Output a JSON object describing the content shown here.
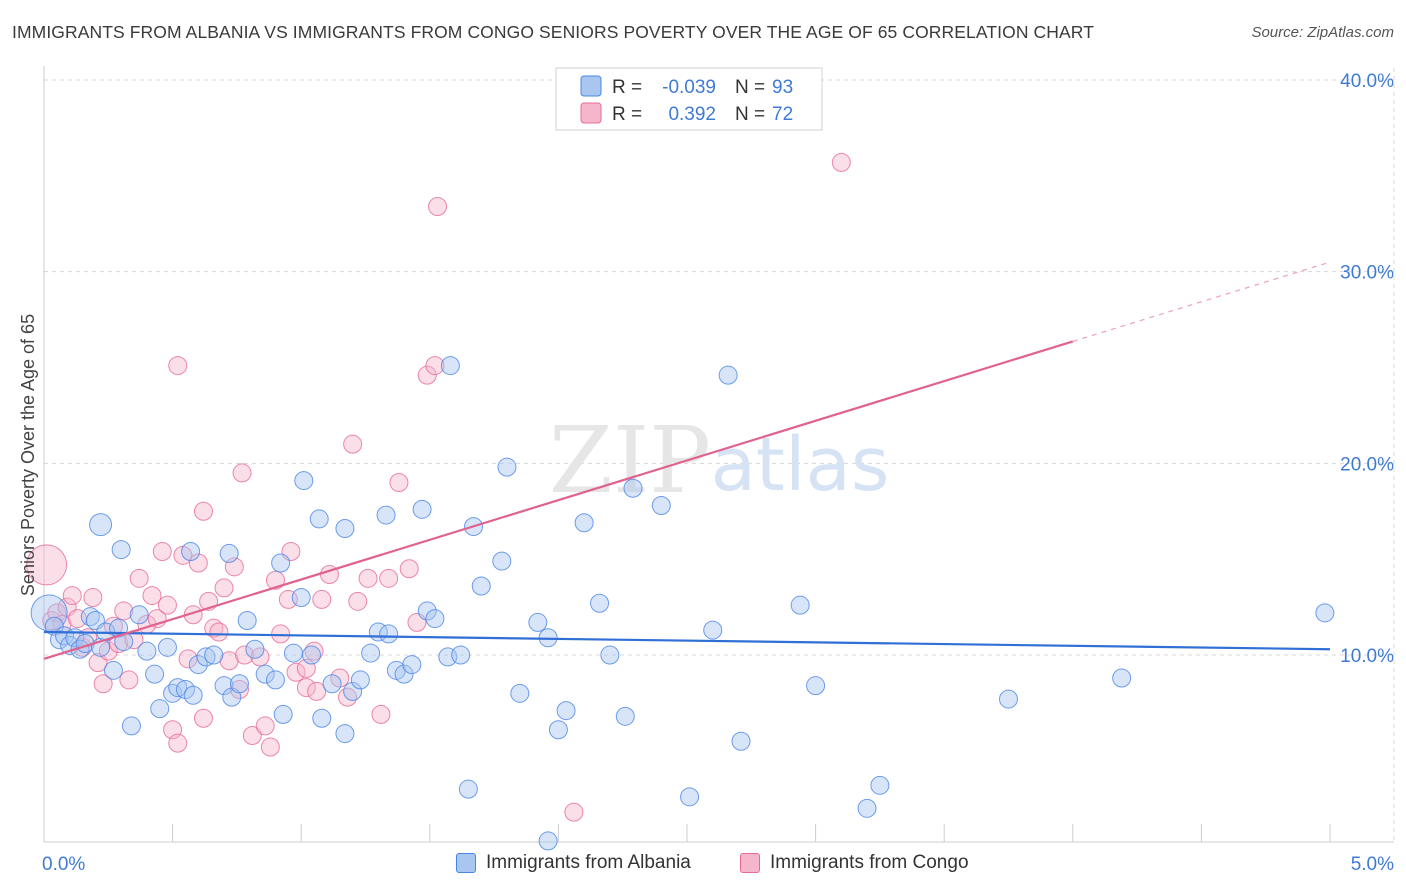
{
  "header": {
    "title": "IMMIGRANTS FROM ALBANIA VS IMMIGRANTS FROM CONGO SENIORS POVERTY OVER THE AGE OF 65 CORRELATION CHART",
    "source": "Source: ZipAtlas.com"
  },
  "colors": {
    "blue": "#4a86e8",
    "blue_fill": "#a9c6f0",
    "pink": "#e86a98",
    "pink_fill": "#f5b6cc",
    "axis_label": "#3f7bd4"
  },
  "watermark": {
    "zip": "ZIP",
    "atlas": "atlas"
  },
  "legend_top": {
    "rows": [
      {
        "r_label": "R = ",
        "r_value": "-0.039",
        "n_label": "N = ",
        "n_value": "93"
      },
      {
        "r_label": "R = ",
        "r_value": "0.392",
        "n_label": "N = ",
        "n_value": "72"
      }
    ]
  },
  "legend_bottom": {
    "items": [
      {
        "label": "Immigrants from Albania"
      },
      {
        "label": "Immigrants from Congo"
      }
    ]
  },
  "chart_data": {
    "type": "scatter",
    "title": "IMMIGRANTS FROM ALBANIA VS IMMIGRANTS FROM CONGO SENIORS POVERTY OVER THE AGE OF 65 CORRELATION CHART",
    "xlabel": "",
    "ylabel": "Seniors Poverty Over the Age of 65",
    "xlim": [
      0,
      5
    ],
    "ylim": [
      0,
      41
    ],
    "x_tick_labels": [
      {
        "value": 0,
        "label": "0.0%"
      },
      {
        "value": 5,
        "label": "5.0%"
      }
    ],
    "y_tick_labels": [
      {
        "value": 10,
        "label": "10.0%"
      },
      {
        "value": 20,
        "label": "20.0%"
      },
      {
        "value": 30,
        "label": "30.0%"
      },
      {
        "value": 40,
        "label": "40.0%"
      }
    ],
    "series": [
      {
        "name": "Immigrants from Albania",
        "color": "#4a86e8",
        "R": -0.039,
        "N": 93,
        "trend": {
          "x0": 0,
          "y0": 11.2,
          "x1": 5,
          "y1": 10.3,
          "solid_to": 5
        },
        "points": [
          [
            0.02,
            12.2
          ],
          [
            0.04,
            11.5
          ],
          [
            0.06,
            10.8
          ],
          [
            0.08,
            11.0
          ],
          [
            0.1,
            10.5
          ],
          [
            0.12,
            10.9
          ],
          [
            0.14,
            10.3
          ],
          [
            0.16,
            10.6
          ],
          [
            0.18,
            12.0
          ],
          [
            0.2,
            11.8
          ],
          [
            0.22,
            10.4
          ],
          [
            0.24,
            11.2
          ],
          [
            0.27,
            9.2
          ],
          [
            0.29,
            11.4
          ],
          [
            0.31,
            10.7
          ],
          [
            0.34,
            6.3
          ],
          [
            0.37,
            12.1
          ],
          [
            0.4,
            10.2
          ],
          [
            0.43,
            9.0
          ],
          [
            0.45,
            7.2
          ],
          [
            0.48,
            10.4
          ],
          [
            0.5,
            8.0
          ],
          [
            0.52,
            8.3
          ],
          [
            0.55,
            8.2
          ],
          [
            0.58,
            7.9
          ],
          [
            0.6,
            9.5
          ],
          [
            0.63,
            9.9
          ],
          [
            0.66,
            10.0
          ],
          [
            0.7,
            8.4
          ],
          [
            0.73,
            7.8
          ],
          [
            0.76,
            8.5
          ],
          [
            0.79,
            11.8
          ],
          [
            0.82,
            10.3
          ],
          [
            0.86,
            9.0
          ],
          [
            0.9,
            8.7
          ],
          [
            0.93,
            6.9
          ],
          [
            0.97,
            10.1
          ],
          [
            1.0,
            13.0
          ],
          [
            1.04,
            10.0
          ],
          [
            1.08,
            6.7
          ],
          [
            1.12,
            8.5
          ],
          [
            1.17,
            5.9
          ],
          [
            1.2,
            8.1
          ],
          [
            1.23,
            8.7
          ],
          [
            1.27,
            10.1
          ],
          [
            1.3,
            11.2
          ],
          [
            1.34,
            11.1
          ],
          [
            1.37,
            9.2
          ],
          [
            1.4,
            9.0
          ],
          [
            1.43,
            9.5
          ],
          [
            1.47,
            17.6
          ],
          [
            1.49,
            12.3
          ],
          [
            1.52,
            11.9
          ],
          [
            1.57,
            9.9
          ],
          [
            1.62,
            10.0
          ],
          [
            1.67,
            16.7
          ],
          [
            1.7,
            13.6
          ],
          [
            1.78,
            14.9
          ],
          [
            1.8,
            19.8
          ],
          [
            1.85,
            8.0
          ],
          [
            1.92,
            11.7
          ],
          [
            1.96,
            10.9
          ],
          [
            2.0,
            6.1
          ],
          [
            2.03,
            7.1
          ],
          [
            2.1,
            16.9
          ],
          [
            2.16,
            12.7
          ],
          [
            2.2,
            10.0
          ],
          [
            2.26,
            6.8
          ],
          [
            2.29,
            18.7
          ],
          [
            2.4,
            17.8
          ],
          [
            2.51,
            2.6
          ],
          [
            2.6,
            11.3
          ],
          [
            2.66,
            24.6
          ],
          [
            2.71,
            5.5
          ],
          [
            2.94,
            12.6
          ],
          [
            3.0,
            8.4
          ],
          [
            3.2,
            2.0
          ],
          [
            3.25,
            3.2
          ],
          [
            3.75,
            7.7
          ],
          [
            4.19,
            8.8
          ],
          [
            4.98,
            12.2
          ],
          [
            0.22,
            16.8
          ],
          [
            0.3,
            15.5
          ],
          [
            0.57,
            15.4
          ],
          [
            0.72,
            15.3
          ],
          [
            0.92,
            14.8
          ],
          [
            1.01,
            19.1
          ],
          [
            1.07,
            17.1
          ],
          [
            1.17,
            16.6
          ],
          [
            1.33,
            17.3
          ],
          [
            1.58,
            25.1
          ],
          [
            1.65,
            3.0
          ],
          [
            1.96,
            0.3
          ]
        ],
        "sizes": {
          "0.02,12.2": "large",
          "0.22,16.8": "medium"
        }
      },
      {
        "name": "Immigrants from Congo",
        "color": "#e86a98",
        "R": 0.392,
        "N": 72,
        "trend": {
          "x0": 0,
          "y0": 9.8,
          "x1": 5,
          "y1": 30.5,
          "solid_to": 4.0
        },
        "points": [
          [
            0.01,
            14.7
          ],
          [
            0.03,
            11.8
          ],
          [
            0.05,
            12.2
          ],
          [
            0.07,
            11.6
          ],
          [
            0.09,
            12.5
          ],
          [
            0.11,
            13.1
          ],
          [
            0.13,
            11.9
          ],
          [
            0.15,
            10.4
          ],
          [
            0.17,
            10.9
          ],
          [
            0.19,
            13.0
          ],
          [
            0.21,
            9.6
          ],
          [
            0.23,
            8.5
          ],
          [
            0.25,
            10.2
          ],
          [
            0.27,
            11.5
          ],
          [
            0.29,
            10.6
          ],
          [
            0.31,
            12.3
          ],
          [
            0.33,
            8.7
          ],
          [
            0.35,
            10.8
          ],
          [
            0.37,
            14.0
          ],
          [
            0.4,
            11.6
          ],
          [
            0.42,
            13.1
          ],
          [
            0.44,
            11.9
          ],
          [
            0.46,
            15.4
          ],
          [
            0.48,
            12.6
          ],
          [
            0.5,
            6.1
          ],
          [
            0.52,
            5.4
          ],
          [
            0.54,
            15.2
          ],
          [
            0.56,
            9.8
          ],
          [
            0.58,
            12.1
          ],
          [
            0.6,
            14.8
          ],
          [
            0.62,
            6.7
          ],
          [
            0.64,
            12.8
          ],
          [
            0.66,
            11.4
          ],
          [
            0.68,
            11.2
          ],
          [
            0.7,
            13.5
          ],
          [
            0.72,
            9.7
          ],
          [
            0.74,
            14.6
          ],
          [
            0.76,
            8.2
          ],
          [
            0.78,
            10.0
          ],
          [
            0.81,
            5.8
          ],
          [
            0.84,
            9.9
          ],
          [
            0.86,
            6.3
          ],
          [
            0.88,
            5.2
          ],
          [
            0.9,
            13.9
          ],
          [
            0.92,
            11.1
          ],
          [
            0.95,
            12.9
          ],
          [
            0.98,
            9.1
          ],
          [
            1.02,
            8.3
          ],
          [
            1.05,
            10.2
          ],
          [
            1.08,
            12.9
          ],
          [
            1.11,
            14.2
          ],
          [
            1.15,
            8.8
          ],
          [
            1.18,
            7.8
          ],
          [
            1.22,
            12.8
          ],
          [
            1.26,
            14.0
          ],
          [
            1.31,
            6.9
          ],
          [
            1.34,
            14.0
          ],
          [
            1.38,
            19.0
          ],
          [
            1.42,
            14.5
          ],
          [
            1.45,
            11.7
          ],
          [
            1.49,
            24.6
          ],
          [
            1.52,
            25.1
          ],
          [
            1.2,
            21.0
          ],
          [
            0.52,
            25.1
          ],
          [
            0.62,
            17.5
          ],
          [
            0.77,
            19.5
          ],
          [
            0.96,
            15.4
          ],
          [
            1.06,
            8.1
          ],
          [
            1.53,
            33.4
          ],
          [
            2.06,
            1.8
          ],
          [
            3.1,
            35.7
          ],
          [
            1.02,
            9.3
          ]
        ]
      }
    ]
  }
}
